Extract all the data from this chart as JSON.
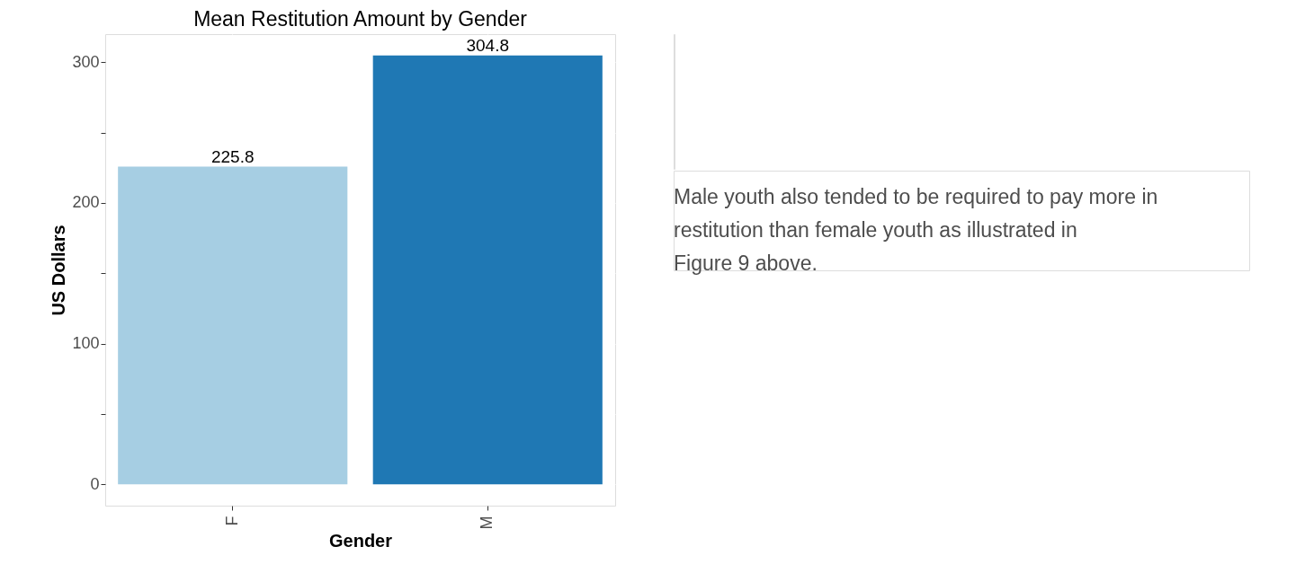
{
  "chart_data": {
    "type": "bar",
    "title": "Mean Restitution Amount by Gender",
    "xlabel": "Gender",
    "ylabel": "US Dollars",
    "categories": [
      "F",
      "M"
    ],
    "values": [
      225.8,
      304.8
    ],
    "colors": [
      "#a6cee3",
      "#1f78b4"
    ],
    "data_labels": true,
    "ylim": [
      -15.2,
      320
    ],
    "yticks": [
      0,
      {
        "value": 50,
        "label": null
      },
      100,
      {
        "value": 150,
        "label": null
      },
      200,
      {
        "value": 250,
        "label": null
      },
      300
    ],
    "grid": true,
    "annotations": [
      "Male youth also tended to be required to pay more in restitution than female youth as illustrated in Figure 9 above."
    ]
  }
}
